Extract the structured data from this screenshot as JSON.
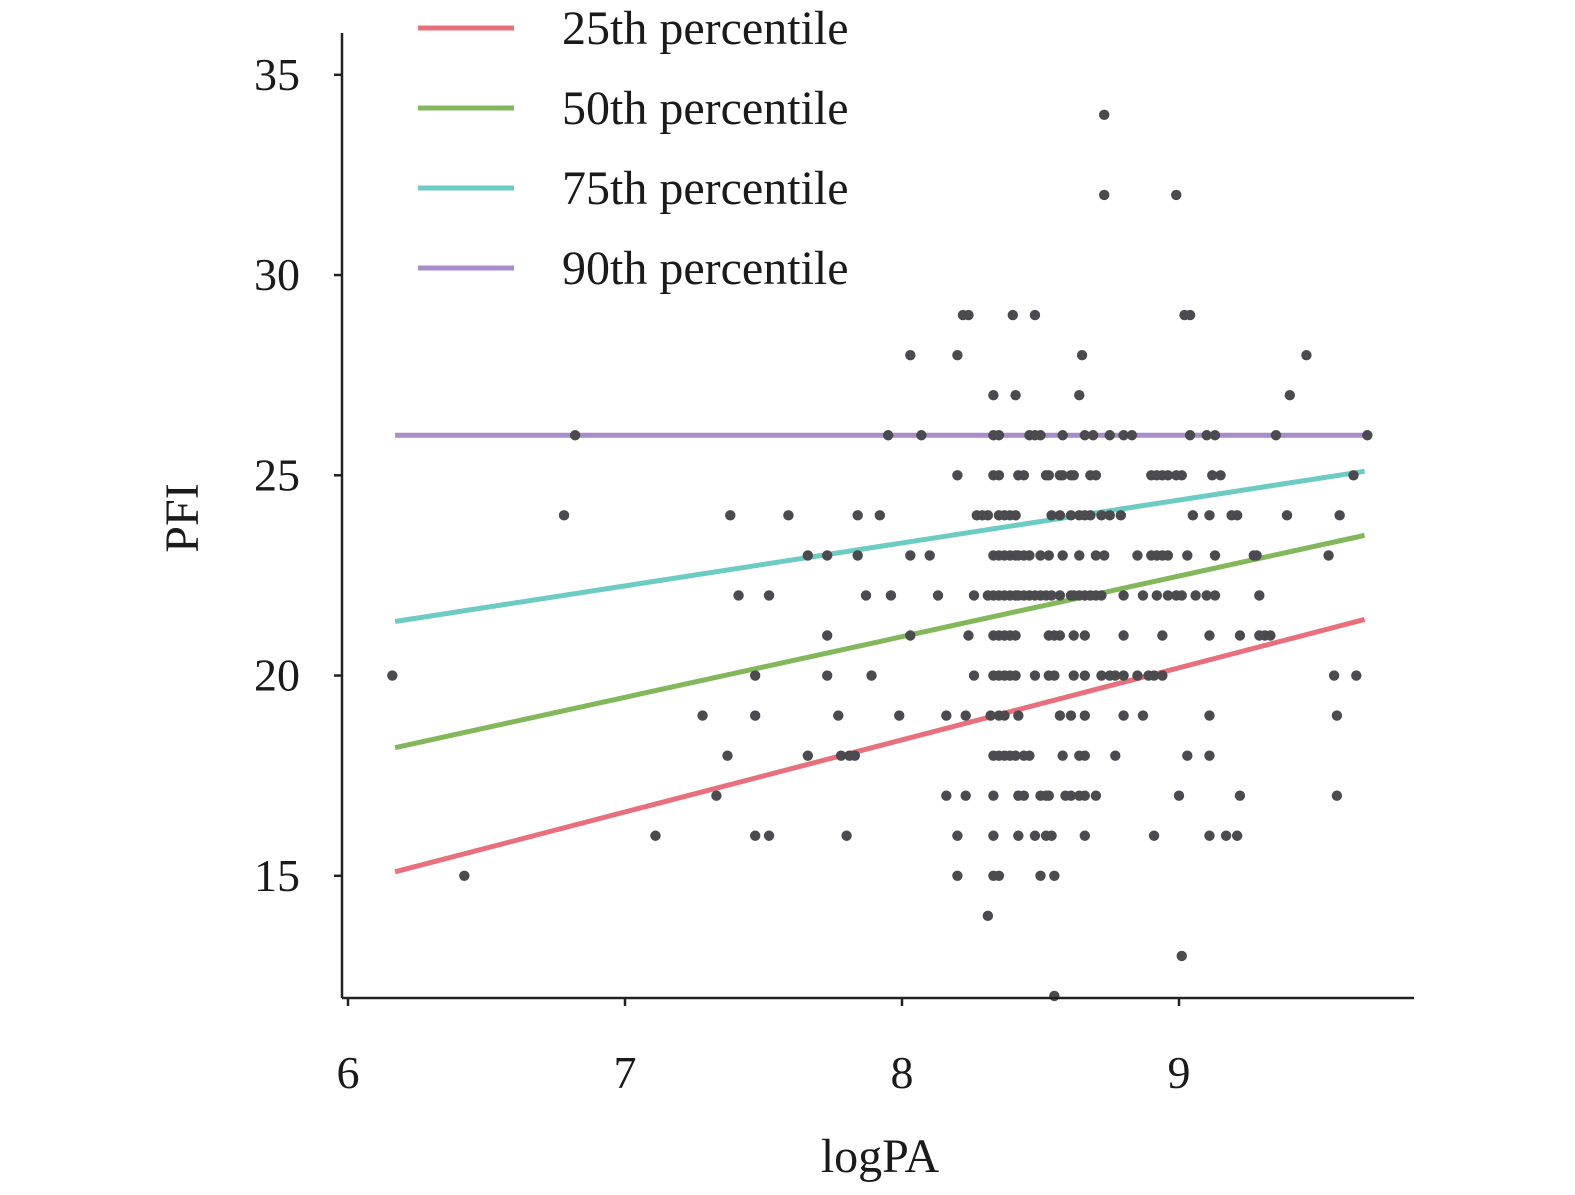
{
  "chart_data": {
    "type": "scatter",
    "title": "",
    "xlabel": "logPA",
    "ylabel": "PFI",
    "xlim": [
      6,
      9.85
    ],
    "ylim": [
      11,
      35
    ],
    "xticks": [
      6,
      7,
      8,
      9
    ],
    "yticks": [
      15,
      20,
      25,
      30,
      35
    ],
    "grid": false,
    "legend_position": "top-left",
    "point_color": "#4a4a4f",
    "lines": [
      {
        "name": "25th percentile",
        "color": "#e8707c",
        "x": [
          6.17,
          9.67
        ],
        "y": [
          15.1,
          21.4
        ]
      },
      {
        "name": "50th percentile",
        "color": "#82b75a",
        "x": [
          6.17,
          9.67
        ],
        "y": [
          18.2,
          23.5
        ]
      },
      {
        "name": "75th percentile",
        "color": "#6ccbc3",
        "x": [
          6.17,
          9.67
        ],
        "y": [
          21.35,
          25.1
        ]
      },
      {
        "name": "90th percentile",
        "color": "#a98ccb",
        "x": [
          6.17,
          9.67
        ],
        "y": [
          26.0,
          26.0
        ]
      }
    ],
    "points": [
      [
        6.16,
        20
      ],
      [
        6.42,
        15
      ],
      [
        6.78,
        24
      ],
      [
        6.82,
        26
      ],
      [
        7.11,
        16
      ],
      [
        7.28,
        19
      ],
      [
        7.33,
        17
      ],
      [
        7.37,
        18
      ],
      [
        7.38,
        24
      ],
      [
        7.41,
        22
      ],
      [
        7.47,
        20
      ],
      [
        7.47,
        19
      ],
      [
        7.47,
        16
      ],
      [
        7.52,
        22
      ],
      [
        7.52,
        16
      ],
      [
        7.59,
        24
      ],
      [
        7.66,
        23
      ],
      [
        7.66,
        18
      ],
      [
        7.73,
        21
      ],
      [
        7.73,
        20
      ],
      [
        7.73,
        23
      ],
      [
        7.77,
        19
      ],
      [
        7.78,
        18
      ],
      [
        7.8,
        16
      ],
      [
        7.81,
        18
      ],
      [
        7.83,
        18
      ],
      [
        7.84,
        24
      ],
      [
        7.84,
        23
      ],
      [
        7.87,
        22
      ],
      [
        7.89,
        20
      ],
      [
        7.92,
        24
      ],
      [
        7.95,
        26
      ],
      [
        7.96,
        22
      ],
      [
        7.99,
        19
      ],
      [
        8.03,
        28
      ],
      [
        8.03,
        23
      ],
      [
        8.03,
        21
      ],
      [
        8.07,
        26
      ],
      [
        8.1,
        23
      ],
      [
        8.13,
        22
      ],
      [
        8.16,
        17
      ],
      [
        8.16,
        19
      ],
      [
        8.2,
        25
      ],
      [
        8.2,
        28
      ],
      [
        8.2,
        16
      ],
      [
        8.2,
        15
      ],
      [
        8.22,
        29
      ],
      [
        8.23,
        17
      ],
      [
        8.23,
        19
      ],
      [
        8.24,
        29
      ],
      [
        8.24,
        21
      ],
      [
        8.26,
        22
      ],
      [
        8.26,
        20
      ],
      [
        8.27,
        24
      ],
      [
        8.29,
        24
      ],
      [
        8.31,
        24
      ],
      [
        8.31,
        22
      ],
      [
        8.31,
        14
      ],
      [
        8.32,
        19
      ],
      [
        8.33,
        27
      ],
      [
        8.33,
        26
      ],
      [
        8.33,
        25
      ],
      [
        8.33,
        23
      ],
      [
        8.33,
        22
      ],
      [
        8.33,
        21
      ],
      [
        8.33,
        20
      ],
      [
        8.33,
        18
      ],
      [
        8.33,
        17
      ],
      [
        8.33,
        16
      ],
      [
        8.33,
        15
      ],
      [
        8.35,
        26
      ],
      [
        8.35,
        25
      ],
      [
        8.35,
        24
      ],
      [
        8.35,
        23
      ],
      [
        8.35,
        22
      ],
      [
        8.35,
        21
      ],
      [
        8.35,
        20
      ],
      [
        8.35,
        19
      ],
      [
        8.35,
        18
      ],
      [
        8.35,
        15
      ],
      [
        8.37,
        24
      ],
      [
        8.37,
        23
      ],
      [
        8.37,
        22
      ],
      [
        8.37,
        21
      ],
      [
        8.37,
        20
      ],
      [
        8.37,
        19
      ],
      [
        8.37,
        18
      ],
      [
        8.39,
        24
      ],
      [
        8.39,
        23
      ],
      [
        8.39,
        22
      ],
      [
        8.39,
        21
      ],
      [
        8.39,
        20
      ],
      [
        8.39,
        18
      ],
      [
        8.4,
        29
      ],
      [
        8.41,
        27
      ],
      [
        8.41,
        24
      ],
      [
        8.41,
        23
      ],
      [
        8.41,
        22
      ],
      [
        8.41,
        21
      ],
      [
        8.41,
        20
      ],
      [
        8.41,
        18
      ],
      [
        8.42,
        25
      ],
      [
        8.42,
        23
      ],
      [
        8.42,
        22
      ],
      [
        8.42,
        19
      ],
      [
        8.42,
        17
      ],
      [
        8.42,
        16
      ],
      [
        8.44,
        25
      ],
      [
        8.44,
        23
      ],
      [
        8.44,
        22
      ],
      [
        8.44,
        18
      ],
      [
        8.44,
        17
      ],
      [
        8.46,
        26
      ],
      [
        8.46,
        23
      ],
      [
        8.46,
        22
      ],
      [
        8.46,
        18
      ],
      [
        8.48,
        29
      ],
      [
        8.48,
        26
      ],
      [
        8.48,
        22
      ],
      [
        8.48,
        20
      ],
      [
        8.48,
        16
      ],
      [
        8.5,
        26
      ],
      [
        8.5,
        23
      ],
      [
        8.5,
        22
      ],
      [
        8.5,
        17
      ],
      [
        8.5,
        15
      ],
      [
        8.52,
        25
      ],
      [
        8.52,
        22
      ],
      [
        8.52,
        17
      ],
      [
        8.52,
        16
      ],
      [
        8.53,
        25
      ],
      [
        8.53,
        23
      ],
      [
        8.53,
        21
      ],
      [
        8.53,
        20
      ],
      [
        8.53,
        17
      ],
      [
        8.54,
        24
      ],
      [
        8.54,
        22
      ],
      [
        8.54,
        16
      ],
      [
        8.55,
        21
      ],
      [
        8.55,
        20
      ],
      [
        8.55,
        12
      ],
      [
        8.55,
        15
      ],
      [
        8.57,
        25
      ],
      [
        8.57,
        24
      ],
      [
        8.57,
        22
      ],
      [
        8.57,
        21
      ],
      [
        8.57,
        19
      ],
      [
        8.58,
        26
      ],
      [
        8.58,
        25
      ],
      [
        8.58,
        23
      ],
      [
        8.58,
        18
      ],
      [
        8.59,
        17
      ],
      [
        8.61,
        25
      ],
      [
        8.61,
        24
      ],
      [
        8.61,
        22
      ],
      [
        8.61,
        19
      ],
      [
        8.61,
        17
      ],
      [
        8.62,
        25
      ],
      [
        8.62,
        22
      ],
      [
        8.62,
        21
      ],
      [
        8.62,
        20
      ],
      [
        8.64,
        27
      ],
      [
        8.64,
        24
      ],
      [
        8.64,
        23
      ],
      [
        8.64,
        22
      ],
      [
        8.64,
        18
      ],
      [
        8.64,
        17
      ],
      [
        8.65,
        28
      ],
      [
        8.66,
        26
      ],
      [
        8.66,
        24
      ],
      [
        8.66,
        22
      ],
      [
        8.66,
        21
      ],
      [
        8.66,
        20
      ],
      [
        8.66,
        19
      ],
      [
        8.66,
        18
      ],
      [
        8.66,
        17
      ],
      [
        8.66,
        16
      ],
      [
        8.68,
        25
      ],
      [
        8.68,
        24
      ],
      [
        8.68,
        22
      ],
      [
        8.69,
        26
      ],
      [
        8.7,
        25
      ],
      [
        8.7,
        23
      ],
      [
        8.7,
        22
      ],
      [
        8.7,
        17
      ],
      [
        8.72,
        24
      ],
      [
        8.72,
        22
      ],
      [
        8.72,
        20
      ],
      [
        8.73,
        34
      ],
      [
        8.73,
        32
      ],
      [
        8.73,
        23
      ],
      [
        8.75,
        26
      ],
      [
        8.75,
        24
      ],
      [
        8.75,
        20
      ],
      [
        8.77,
        20
      ],
      [
        8.77,
        18
      ],
      [
        8.79,
        24
      ],
      [
        8.8,
        26
      ],
      [
        8.8,
        22
      ],
      [
        8.8,
        21
      ],
      [
        8.8,
        20
      ],
      [
        8.8,
        19
      ],
      [
        8.83,
        26
      ],
      [
        8.85,
        23
      ],
      [
        8.85,
        20
      ],
      [
        8.87,
        22
      ],
      [
        8.87,
        19
      ],
      [
        8.89,
        20
      ],
      [
        8.9,
        25
      ],
      [
        8.9,
        23
      ],
      [
        8.91,
        20
      ],
      [
        8.91,
        16
      ],
      [
        8.92,
        25
      ],
      [
        8.92,
        23
      ],
      [
        8.92,
        22
      ],
      [
        8.94,
        25
      ],
      [
        8.94,
        23
      ],
      [
        8.94,
        21
      ],
      [
        8.94,
        20
      ],
      [
        8.96,
        25
      ],
      [
        8.96,
        23
      ],
      [
        8.96,
        22
      ],
      [
        8.99,
        25
      ],
      [
        8.99,
        32
      ],
      [
        8.99,
        22
      ],
      [
        9.0,
        17
      ],
      [
        9.01,
        25
      ],
      [
        9.01,
        22
      ],
      [
        9.01,
        13
      ],
      [
        9.02,
        29
      ],
      [
        9.03,
        23
      ],
      [
        9.03,
        18
      ],
      [
        9.04,
        26
      ],
      [
        9.04,
        29
      ],
      [
        9.05,
        24
      ],
      [
        9.06,
        22
      ],
      [
        9.1,
        26
      ],
      [
        9.1,
        22
      ],
      [
        9.11,
        24
      ],
      [
        9.11,
        21
      ],
      [
        9.11,
        19
      ],
      [
        9.11,
        18
      ],
      [
        9.11,
        16
      ],
      [
        9.12,
        25
      ],
      [
        9.13,
        26
      ],
      [
        9.13,
        23
      ],
      [
        9.13,
        22
      ],
      [
        9.15,
        25
      ],
      [
        9.17,
        16
      ],
      [
        9.19,
        24
      ],
      [
        9.21,
        24
      ],
      [
        9.21,
        16
      ],
      [
        9.22,
        17
      ],
      [
        9.22,
        21
      ],
      [
        9.27,
        23
      ],
      [
        9.28,
        23
      ],
      [
        9.29,
        22
      ],
      [
        9.29,
        21
      ],
      [
        9.31,
        21
      ],
      [
        9.33,
        21
      ],
      [
        9.35,
        26
      ],
      [
        9.39,
        24
      ],
      [
        9.4,
        27
      ],
      [
        9.46,
        28
      ],
      [
        9.54,
        23
      ],
      [
        9.56,
        20
      ],
      [
        9.57,
        19
      ],
      [
        9.57,
        17
      ],
      [
        9.58,
        24
      ],
      [
        9.63,
        25
      ],
      [
        9.64,
        20
      ],
      [
        9.68,
        26
      ]
    ]
  }
}
